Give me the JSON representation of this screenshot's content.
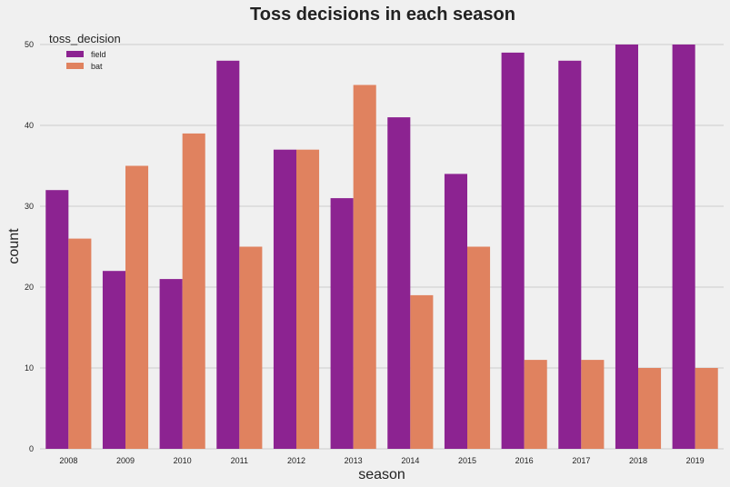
{
  "chart_data": {
    "type": "bar",
    "title": "Toss decisions in each season",
    "xlabel": "season",
    "ylabel": "count",
    "categories": [
      "2008",
      "2009",
      "2010",
      "2011",
      "2012",
      "2013",
      "2014",
      "2015",
      "2016",
      "2017",
      "2018",
      "2019"
    ],
    "series": [
      {
        "name": "field",
        "color": "#8c2391",
        "values": [
          32,
          22,
          21,
          48,
          37,
          31,
          41,
          34,
          49,
          48,
          50,
          50
        ]
      },
      {
        "name": "bat",
        "color": "#e0825f",
        "values": [
          26,
          35,
          39,
          25,
          37,
          45,
          19,
          25,
          11,
          11,
          10,
          10
        ]
      }
    ],
    "ylim": [
      0,
      50
    ],
    "yticks": [
      0,
      10,
      20,
      30,
      40,
      50
    ],
    "grid": true,
    "legend": {
      "title": "toss_decision",
      "placement": "top-left"
    }
  }
}
